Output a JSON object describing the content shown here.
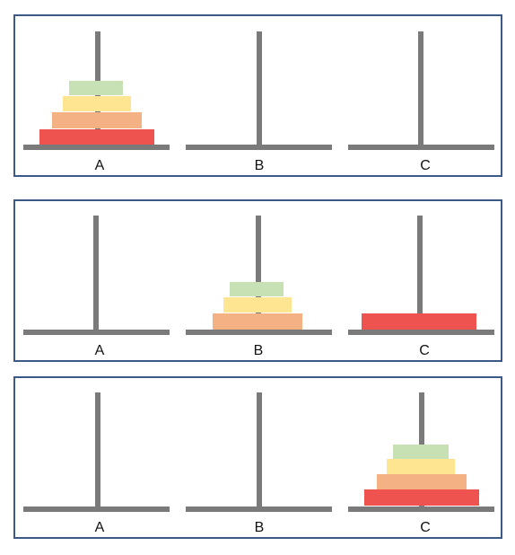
{
  "colors": {
    "frame": "#3b5a87",
    "peg": "#7a7a7a",
    "disk_green": "#c7e0b4",
    "disk_yellow": "#fde592",
    "disk_orange": "#f4b183",
    "disk_red": "#ef5350"
  },
  "peg_labels": [
    "A",
    "B",
    "C"
  ],
  "disks": [
    {
      "id": "green",
      "size_rank": 1
    },
    {
      "id": "yellow",
      "size_rank": 2
    },
    {
      "id": "orange",
      "size_rank": 3
    },
    {
      "id": "red",
      "size_rank": 4
    }
  ],
  "states": [
    {
      "A": [
        "red",
        "orange",
        "yellow",
        "green"
      ],
      "B": [],
      "C": []
    },
    {
      "A": [],
      "B": [
        "orange",
        "yellow",
        "green"
      ],
      "C": [
        "red"
      ]
    },
    {
      "A": [],
      "B": [],
      "C": [
        "red",
        "orange",
        "yellow",
        "green"
      ]
    }
  ]
}
